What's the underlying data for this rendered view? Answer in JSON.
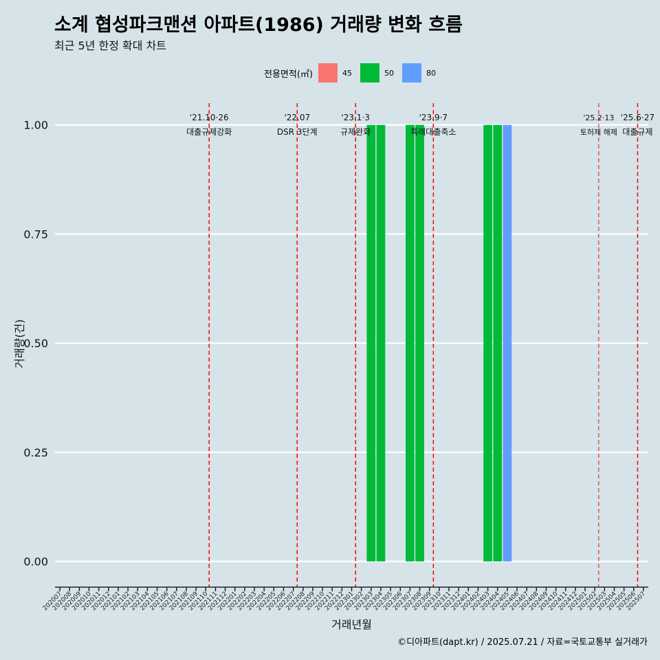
{
  "title": "소계 협성파크맨션 아파트(1986) 거래량 변화 흐름",
  "subtitle": "최근 5년 한정 확대 차트",
  "caption": "©디아파트(dapt.kr) / 2025.07.21 / 자료=국토교통부 실거래가",
  "legend": {
    "title": "전용면적(㎡)",
    "items": [
      {
        "label": "45",
        "color": "#f8766d"
      },
      {
        "label": "50",
        "color": "#00ba38"
      },
      {
        "label": "80",
        "color": "#619cff"
      }
    ]
  },
  "chart_data": {
    "type": "bar",
    "xlabel": "거래년월",
    "ylabel": "거래량(건)",
    "ylim": [
      -0.04,
      1.05
    ],
    "yticks": [
      0.0,
      0.25,
      0.5,
      0.75,
      1.0
    ],
    "ytick_labels": [
      "0.00",
      "0.25",
      "0.50",
      "0.75",
      "1.00"
    ],
    "grid": "horizontal",
    "legend_position": "top",
    "categories": [
      "202007",
      "202008",
      "202009",
      "202010",
      "202011",
      "202012",
      "202101",
      "202102",
      "202103",
      "202104",
      "202105",
      "202106",
      "202107",
      "202108",
      "202109",
      "202110",
      "202111",
      "202112",
      "202201",
      "202202",
      "202203",
      "202204",
      "202205",
      "202206",
      "202207",
      "202208",
      "202209",
      "202210",
      "202211",
      "202212",
      "202301",
      "202302",
      "202303",
      "202304",
      "202305",
      "202306",
      "202307",
      "202308",
      "202309",
      "202310",
      "202311",
      "202312",
      "202401",
      "202402",
      "202403",
      "202404",
      "202405",
      "202406",
      "202407",
      "202408",
      "202409",
      "202410",
      "202411",
      "202412",
      "202501",
      "202502",
      "202503",
      "202504",
      "202505",
      "202506",
      "202507"
    ],
    "bars": [
      {
        "month": "202303",
        "area": "50",
        "count": 1
      },
      {
        "month": "202304",
        "area": "50",
        "count": 1
      },
      {
        "month": "202307",
        "area": "50",
        "count": 1
      },
      {
        "month": "202308",
        "area": "50",
        "count": 1
      },
      {
        "month": "202403",
        "area": "50",
        "count": 1
      },
      {
        "month": "202404",
        "area": "50",
        "count": 1
      },
      {
        "month": "202405",
        "area": "80",
        "count": 1
      }
    ],
    "events": [
      {
        "month_pos": 15.85,
        "date": "'21.10·26",
        "label": "대출규제강화"
      },
      {
        "month_pos": 24.9,
        "date": "'22.07",
        "label": "DSR 3단계"
      },
      {
        "month_pos": 30.9,
        "date": "'23.1·3",
        "label": "규제완화"
      },
      {
        "month_pos": 38.9,
        "date": "'23.9·7",
        "label": "특례대출축소"
      },
      {
        "month_pos": 55.9,
        "date": "'25.2·13",
        "label": "토허제 해제"
      },
      {
        "month_pos": 59.9,
        "date": "'25.6·27",
        "label": "대출규제"
      }
    ]
  }
}
